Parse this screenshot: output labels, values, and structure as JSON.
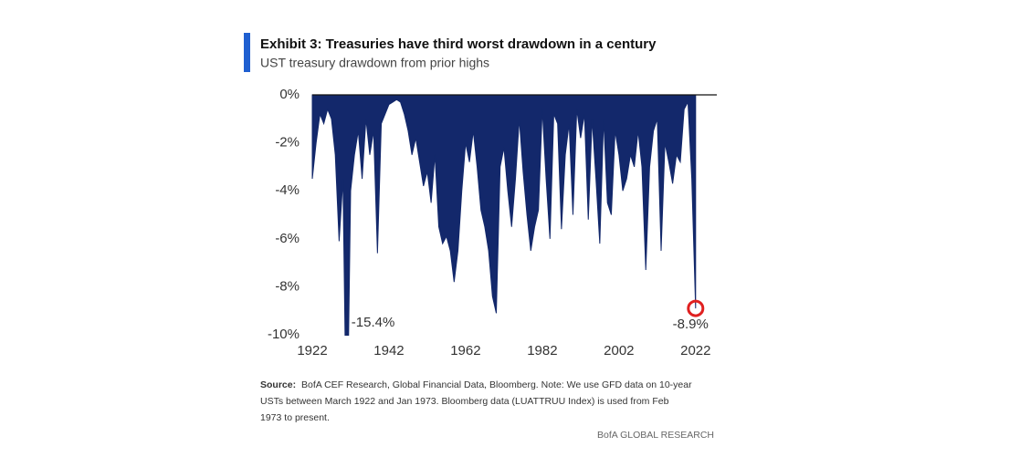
{
  "chart_data": {
    "type": "area",
    "title": "Exhibit 3: Treasuries have third worst drawdown  in a century",
    "subtitle": "UST treasury drawdown from prior highs",
    "color": "#13286b",
    "highlight_color": "#e02020",
    "x": [
      1922,
      1923,
      1924,
      1925,
      1926,
      1927,
      1928,
      1929,
      1930,
      1931,
      1932,
      1933,
      1934,
      1935,
      1936,
      1937,
      1938,
      1939,
      1940,
      1941,
      1942,
      1943,
      1944,
      1945,
      1946,
      1947,
      1948,
      1949,
      1950,
      1951,
      1952,
      1953,
      1954,
      1955,
      1956,
      1957,
      1958,
      1959,
      1960,
      1961,
      1962,
      1963,
      1964,
      1965,
      1966,
      1967,
      1968,
      1969,
      1970,
      1971,
      1972,
      1973,
      1974,
      1975,
      1976,
      1977,
      1978,
      1979,
      1980,
      1981,
      1982,
      1983,
      1984,
      1985,
      1986,
      1987,
      1988,
      1989,
      1990,
      1991,
      1992,
      1993,
      1994,
      1995,
      1996,
      1997,
      1998,
      1999,
      2000,
      2001,
      2002,
      2003,
      2004,
      2005,
      2006,
      2007,
      2008,
      2009,
      2010,
      2011,
      2012,
      2013,
      2014,
      2015,
      2016,
      2017,
      2018,
      2019,
      2020,
      2021,
      2022
    ],
    "series": [
      {
        "name": "UST treasury drawdown",
        "color": "#13286b",
        "values": [
          -3.5,
          -2,
          -0.8,
          -1.2,
          -0.6,
          -1,
          -2.5,
          -6.1,
          -3.5,
          -15.4,
          -4,
          -2.5,
          -1.5,
          -3.5,
          -1,
          -2.5,
          -1.5,
          -6.6,
          -1.2,
          -0.8,
          -0.4,
          -0.3,
          -0.2,
          -0.3,
          -0.8,
          -1.5,
          -2.5,
          -1.8,
          -2.8,
          -3.8,
          -3.2,
          -4.5,
          -2.5,
          -5.5,
          -6.2,
          -5.9,
          -6.5,
          -7.8,
          -6.5,
          -4,
          -2,
          -2.8,
          -1.5,
          -3,
          -4.8,
          -5.5,
          -6.5,
          -8.4,
          -9.1,
          -3,
          -2.2,
          -4,
          -5.5,
          -3.5,
          -1,
          -3.2,
          -5,
          -6.5,
          -5.5,
          -4.8,
          -0.6,
          -3.5,
          -6,
          -0.8,
          -1.2,
          -5.6,
          -2.5,
          -1.2,
          -5,
          -0.6,
          -1.8,
          -0.8,
          -5.2,
          -1,
          -3.5,
          -6.2,
          -1,
          -4.5,
          -5,
          -1.5,
          -2.5,
          -4,
          -3.5,
          -2.5,
          -3,
          -1.5,
          -3,
          -7.3,
          -3,
          -1.5,
          -1,
          -6.5,
          -2,
          -2.8,
          -3.7,
          -2.5,
          -2.8,
          -0.6,
          -0.3,
          -3.5,
          -8.9
        ]
      }
    ],
    "annotations": [
      "-15.4%",
      "-8.9%"
    ],
    "xlim": [
      1922,
      2023
    ],
    "xticks": [
      1922,
      1942,
      1962,
      1982,
      2002,
      2022
    ],
    "ylim": [
      -10,
      0
    ],
    "yticks": [
      {
        "value": 0,
        "label": "0%"
      },
      {
        "value": -2,
        "label": "-2%"
      },
      {
        "value": -4,
        "label": "-4%"
      },
      {
        "value": -6,
        "label": "-6%"
      },
      {
        "value": -8,
        "label": "-8%"
      },
      {
        "value": -10,
        "label": "-10%"
      }
    ],
    "grid": false,
    "source_label": "Source:",
    "source_lines": [
      "BofA CEF Research, Global Financial Data, Bloomberg. Note: We use GFD data on 10-year",
      "USTs between March 1922  and Jan 1973.  Bloomberg data (LUATTRUU  Index) is used from Feb",
      "1973  to present."
    ],
    "brand": "BofA GLOBAL RESEARCH"
  }
}
